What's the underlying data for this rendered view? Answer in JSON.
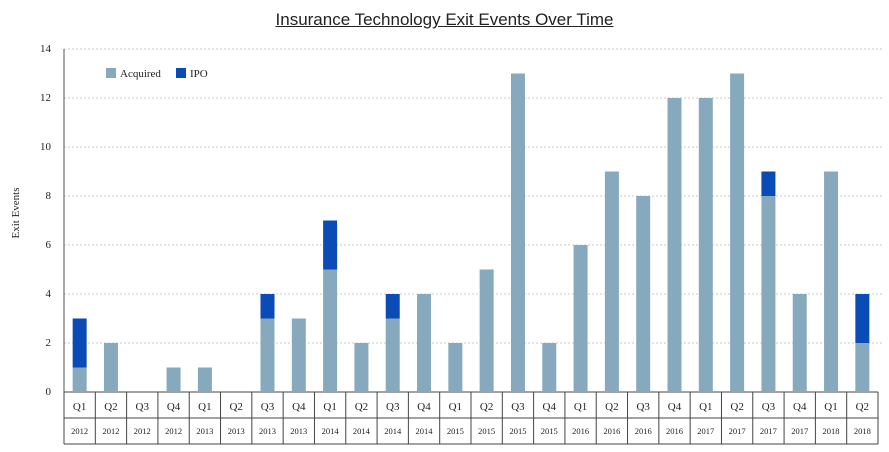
{
  "chart_data": {
    "type": "bar",
    "stacked": true,
    "title": "Insurance Technology Exit Events Over Time",
    "ylabel": "Exit Events",
    "xlabel": "",
    "ylim": [
      0,
      14
    ],
    "yticks": [
      0,
      2,
      4,
      6,
      8,
      10,
      12,
      14
    ],
    "grid": true,
    "legend_position": "top-left",
    "categories": [
      {
        "quarter": "Q1",
        "year": "2012"
      },
      {
        "quarter": "Q2",
        "year": "2012"
      },
      {
        "quarter": "Q3",
        "year": "2012"
      },
      {
        "quarter": "Q4",
        "year": "2012"
      },
      {
        "quarter": "Q1",
        "year": "2013"
      },
      {
        "quarter": "Q2",
        "year": "2013"
      },
      {
        "quarter": "Q3",
        "year": "2013"
      },
      {
        "quarter": "Q4",
        "year": "2013"
      },
      {
        "quarter": "Q1",
        "year": "2014"
      },
      {
        "quarter": "Q2",
        "year": "2014"
      },
      {
        "quarter": "Q3",
        "year": "2014"
      },
      {
        "quarter": "Q4",
        "year": "2014"
      },
      {
        "quarter": "Q1",
        "year": "2015"
      },
      {
        "quarter": "Q2",
        "year": "2015"
      },
      {
        "quarter": "Q3",
        "year": "2015"
      },
      {
        "quarter": "Q4",
        "year": "2015"
      },
      {
        "quarter": "Q1",
        "year": "2016"
      },
      {
        "quarter": "Q2",
        "year": "2016"
      },
      {
        "quarter": "Q3",
        "year": "2016"
      },
      {
        "quarter": "Q4",
        "year": "2016"
      },
      {
        "quarter": "Q1",
        "year": "2017"
      },
      {
        "quarter": "Q2",
        "year": "2017"
      },
      {
        "quarter": "Q3",
        "year": "2017"
      },
      {
        "quarter": "Q4",
        "year": "2017"
      },
      {
        "quarter": "Q1",
        "year": "2018"
      },
      {
        "quarter": "Q2",
        "year": "2018"
      }
    ],
    "series": [
      {
        "name": "Acquired",
        "color": "#87a9bd",
        "values": [
          1,
          2,
          0,
          1,
          1,
          0,
          3,
          3,
          5,
          2,
          3,
          4,
          2,
          5,
          13,
          2,
          6,
          9,
          8,
          12,
          12,
          13,
          8,
          4,
          9,
          2
        ]
      },
      {
        "name": "IPO",
        "color": "#0a4bb5",
        "values": [
          2,
          0,
          0,
          0,
          0,
          0,
          1,
          0,
          2,
          0,
          1,
          0,
          0,
          0,
          0,
          0,
          0,
          0,
          0,
          0,
          0,
          0,
          1,
          0,
          0,
          2
        ]
      }
    ]
  }
}
